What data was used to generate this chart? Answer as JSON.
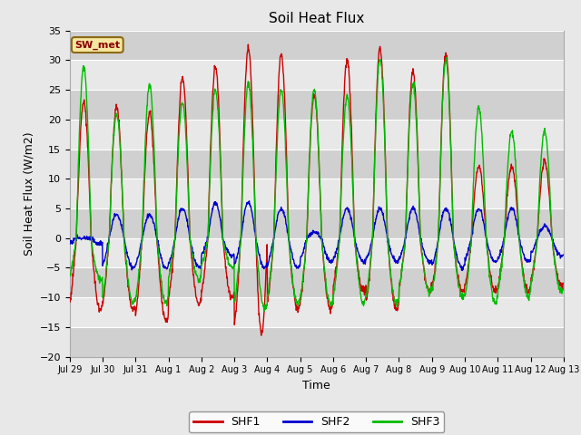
{
  "title": "Soil Heat Flux",
  "xlabel": "Time",
  "ylabel": "Soil Heat Flux (W/m2)",
  "ylim": [
    -20,
    35
  ],
  "yticks": [
    -20,
    -15,
    -10,
    -5,
    0,
    5,
    10,
    15,
    20,
    25,
    30,
    35
  ],
  "fig_bg_color": "#e8e8e8",
  "plot_bg_color": "#e0e0e0",
  "band_color": "#d0d0d0",
  "legend_label": "SW_met",
  "legend_bg": "#f5e6a0",
  "legend_border": "#8B6914",
  "line_colors": {
    "SHF1": "#cc0000",
    "SHF2": "#0000cc",
    "SHF3": "#00bb00"
  },
  "xtick_labels": [
    "Jul 29",
    "Jul 30",
    "Jul 31",
    "Aug 1",
    "Aug 2",
    "Aug 3",
    "Aug 4",
    "Aug 5",
    "Aug 6",
    "Aug 7",
    "Aug 8",
    "Aug 9",
    "Aug 10",
    "Aug 11",
    "Aug 12",
    "Aug 13"
  ],
  "num_days": 15,
  "points_per_day": 96,
  "amp1_day": [
    23,
    22,
    21,
    27,
    29,
    32,
    31,
    24,
    30,
    32,
    28,
    31,
    12,
    12,
    13
  ],
  "amp1_night": [
    12,
    12,
    14,
    11,
    10,
    16,
    12,
    12,
    9,
    12,
    9,
    9,
    9,
    9,
    8
  ],
  "amp2_day": [
    0,
    4,
    4,
    5,
    6,
    6,
    5,
    1,
    5,
    5,
    5,
    5,
    5,
    5,
    2
  ],
  "amp2_night": [
    1,
    5,
    5,
    5,
    3,
    5,
    5,
    4,
    4,
    4,
    4,
    5,
    4,
    4,
    3
  ],
  "amp3_day": [
    29,
    21,
    26,
    23,
    25,
    26,
    25,
    25,
    24,
    30,
    26,
    30,
    22,
    18,
    18
  ],
  "amp3_night": [
    7,
    11,
    11,
    7,
    5,
    12,
    11,
    11,
    11,
    11,
    9,
    10,
    11,
    10,
    9
  ],
  "shf1_special_dip_day": 5,
  "shf1_special_dip_val": -16
}
